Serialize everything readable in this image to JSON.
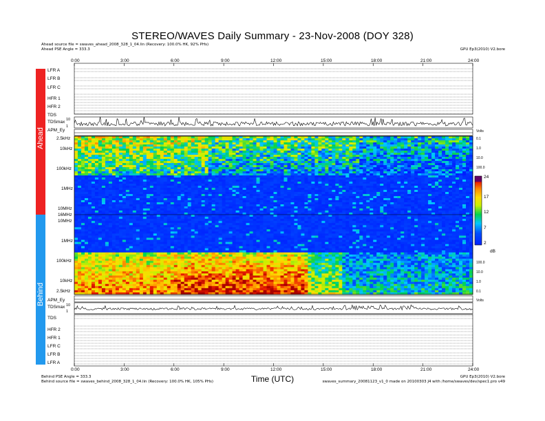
{
  "chart_data": {
    "type": "heatmap",
    "title": "STEREO/WAVES Daily Summary - 23-Nov-2008 (DOY 328)",
    "xlabel": "Time (UTC)",
    "x_ticks": [
      "0:00",
      "3:00",
      "6:00",
      "9:00",
      "12:00",
      "15:00",
      "18:00",
      "21:00",
      "24:00"
    ],
    "xlim_hours": [
      0,
      24
    ],
    "top_meta": [
      "Ahead source file = swaves_ahead_2008_328_1_04.lin (Recovery: 100.0% HK, 92% PHs)",
      "Ahead PSE Angle = 333.3"
    ],
    "top_right_meta": "GPU Ep3(2010) V2.bore",
    "bottom_meta": [
      "Behind PSE Angle = 333.3",
      "Behind source file = swaves_behind_2008_328_1_04.lin (Recovery: 100.0% HK, 105% PHs)"
    ],
    "bottom_right_meta": [
      "GPU Ep3(2010) V2.bore",
      "swaves_summary_20081123_v1_0 made on 20100303 J4 with /home/swaves/dev/spec1.pro v49"
    ],
    "spacecraft_labels": [
      "Ahead",
      "Behind"
    ],
    "spacecraft_colors": {
      "Ahead": "#ee2222",
      "Behind": "#2299ee"
    },
    "ahead_rows": [
      "LFR A",
      "LFR B",
      "LFR C",
      "HFR 1",
      "HFR 2",
      "TDS",
      "TDSmax"
    ],
    "behind_rows": [
      "TDSmax",
      "TDS",
      "HFR 2",
      "HFR 1",
      "LFR C",
      "LFR B",
      "LFR A"
    ],
    "apm_labels": [
      "APM_Ey",
      "APM_Ey"
    ],
    "right_units_small": [
      "Volts",
      "Volts"
    ],
    "ahead_freq_ticks": [
      "2.5kHz",
      "10kHz",
      "100kHz",
      "1MHz",
      "10MHz",
      "16MHz"
    ],
    "behind_freq_ticks": [
      "10MHz",
      "1MHz",
      "100kHz",
      "10kHz",
      "2.5kHz"
    ],
    "tdsmax_ticks": [
      "10",
      "1"
    ],
    "right_au_ticks": [
      "0.1",
      "1.0",
      "10.0",
      "100.0"
    ],
    "colorbar": {
      "label": "dB",
      "ticks": [
        "24",
        "17",
        "12",
        "7",
        "2"
      ],
      "range": [
        2,
        24
      ],
      "colors": [
        "#00cc00",
        "#0022ff",
        "#00ccff",
        "#ffff00",
        "#ff8800",
        "#ff0000",
        "#660066"
      ]
    }
  }
}
